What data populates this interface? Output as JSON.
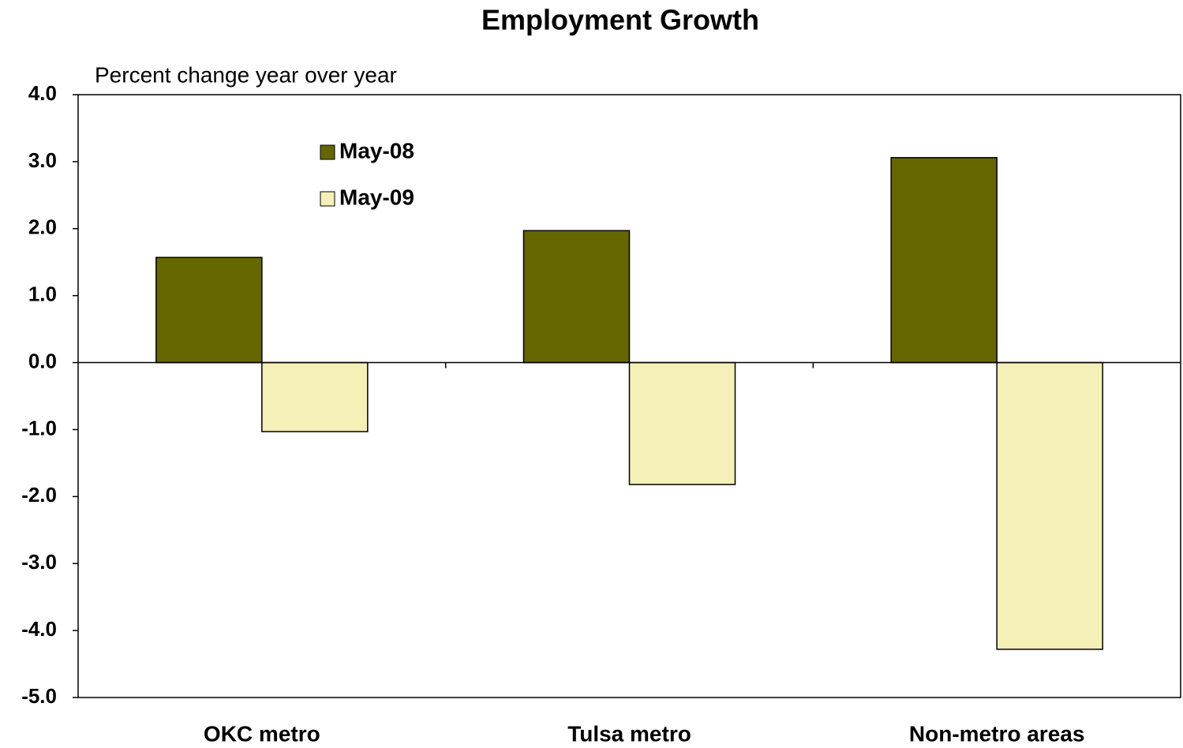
{
  "chart_data": {
    "type": "bar",
    "title": "Employment Growth",
    "subtitle": "Percent change year over year",
    "categories": [
      "OKC metro",
      "Tulsa metro",
      "Non-metro areas"
    ],
    "series": [
      {
        "name": "May-08",
        "color": "#666600",
        "values": [
          1.57,
          1.97,
          3.06
        ]
      },
      {
        "name": "May-09",
        "color": "#f5f0b8",
        "values": [
          -1.03,
          -1.82,
          -4.28
        ]
      }
    ],
    "ylim": [
      -5,
      4
    ],
    "yticks": [
      {
        "value": -5,
        "label": "-5.0"
      },
      {
        "value": -4,
        "label": "-4.0"
      },
      {
        "value": -3,
        "label": "-3.0"
      },
      {
        "value": -2,
        "label": "-2.0"
      },
      {
        "value": -1,
        "label": "-1.0"
      },
      {
        "value": 0,
        "label": "0.0"
      },
      {
        "value": 1,
        "label": "1.0"
      },
      {
        "value": 2,
        "label": "2.0"
      },
      {
        "value": 3,
        "label": "3.0"
      },
      {
        "value": 4,
        "label": "4.0"
      }
    ],
    "grid": false,
    "legend": "top-left"
  }
}
